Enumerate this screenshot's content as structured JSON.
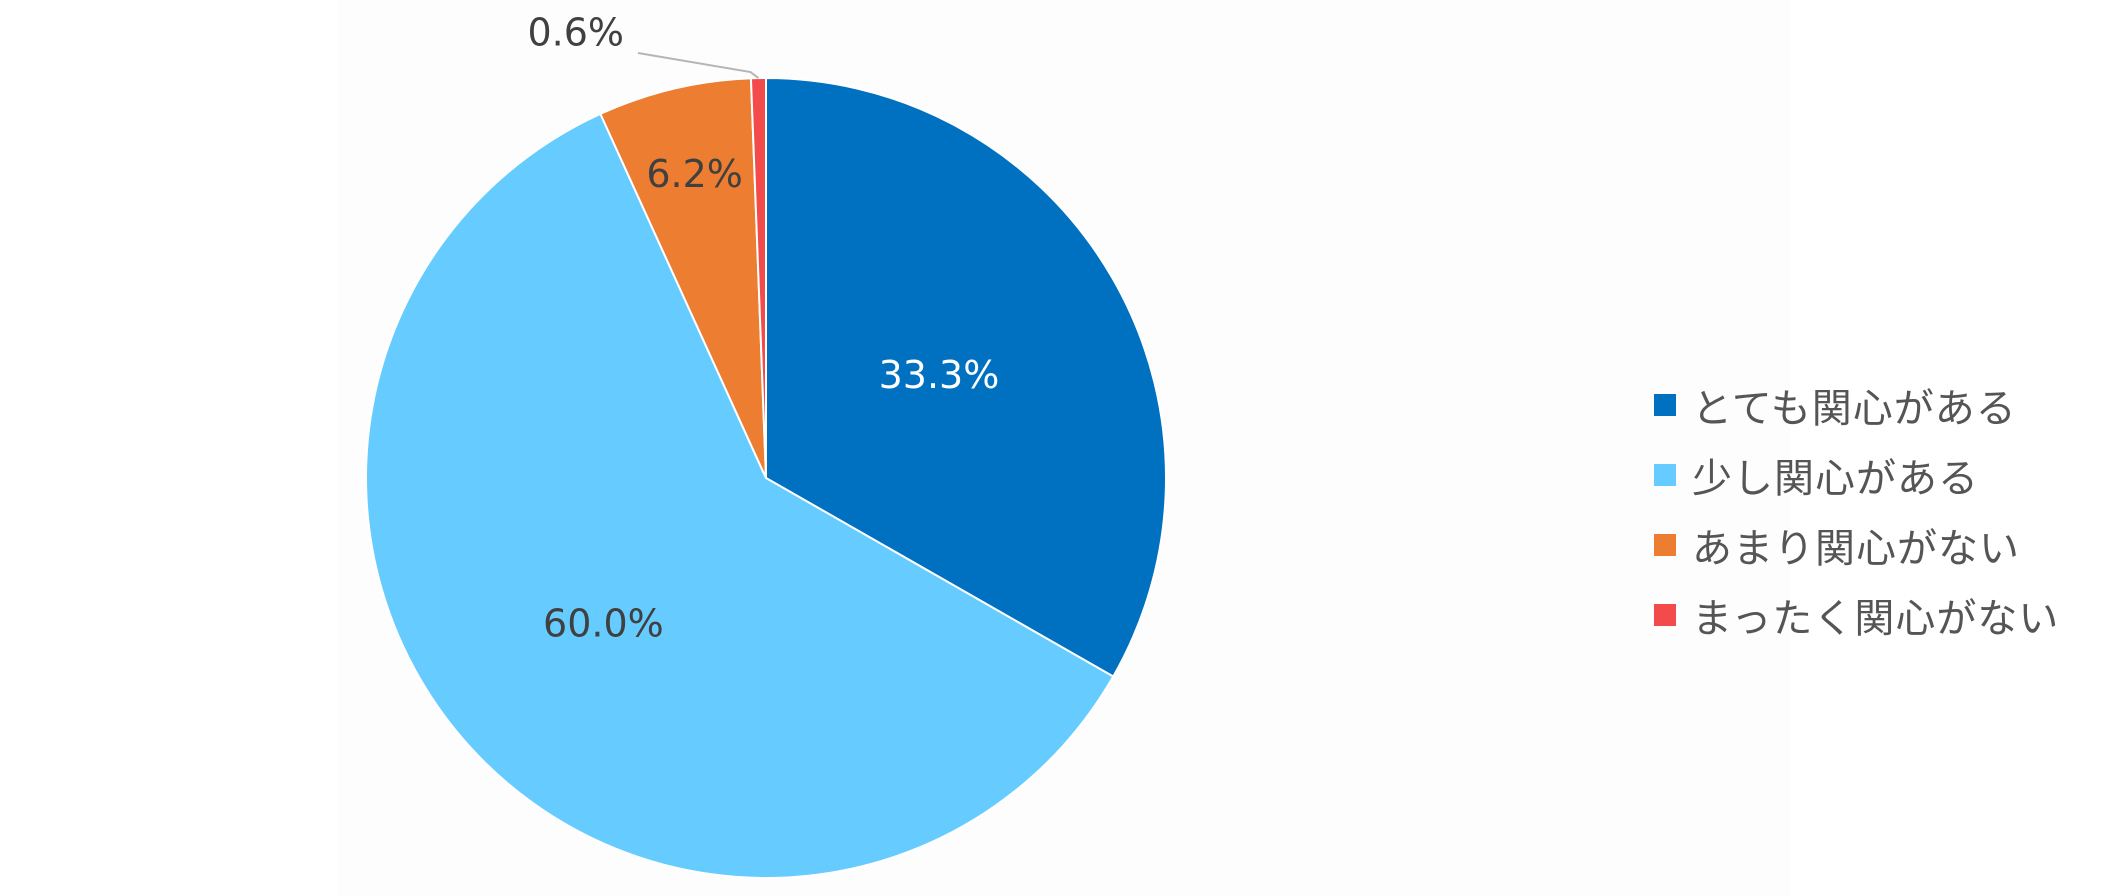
{
  "chart_data": {
    "type": "pie",
    "title": "",
    "categories": [
      "とても関心がある",
      "少し関心がある",
      "あまり関心がない",
      "まったく関心がない"
    ],
    "values": [
      33.3,
      60.0,
      6.2,
      0.6
    ],
    "value_labels": [
      "33.3%",
      "60.0%",
      "6.2%",
      "0.6%"
    ],
    "colors": [
      "#0070C0",
      "#66CCFF",
      "#ED7D31",
      "#F34B4B"
    ],
    "label_colors": [
      "#ffffff",
      "#404040",
      "#404040",
      "#404040"
    ],
    "start_angle_deg": 0,
    "direction": "clockwise",
    "legend_position": "right"
  },
  "legend": {
    "items": [
      {
        "label": "とても関心がある",
        "color": "#0070C0"
      },
      {
        "label": "少し関心がある",
        "color": "#66CCFF"
      },
      {
        "label": "あまり関心がない",
        "color": "#ED7D31"
      },
      {
        "label": "まったく関心がない",
        "color": "#F34B4B"
      }
    ]
  }
}
